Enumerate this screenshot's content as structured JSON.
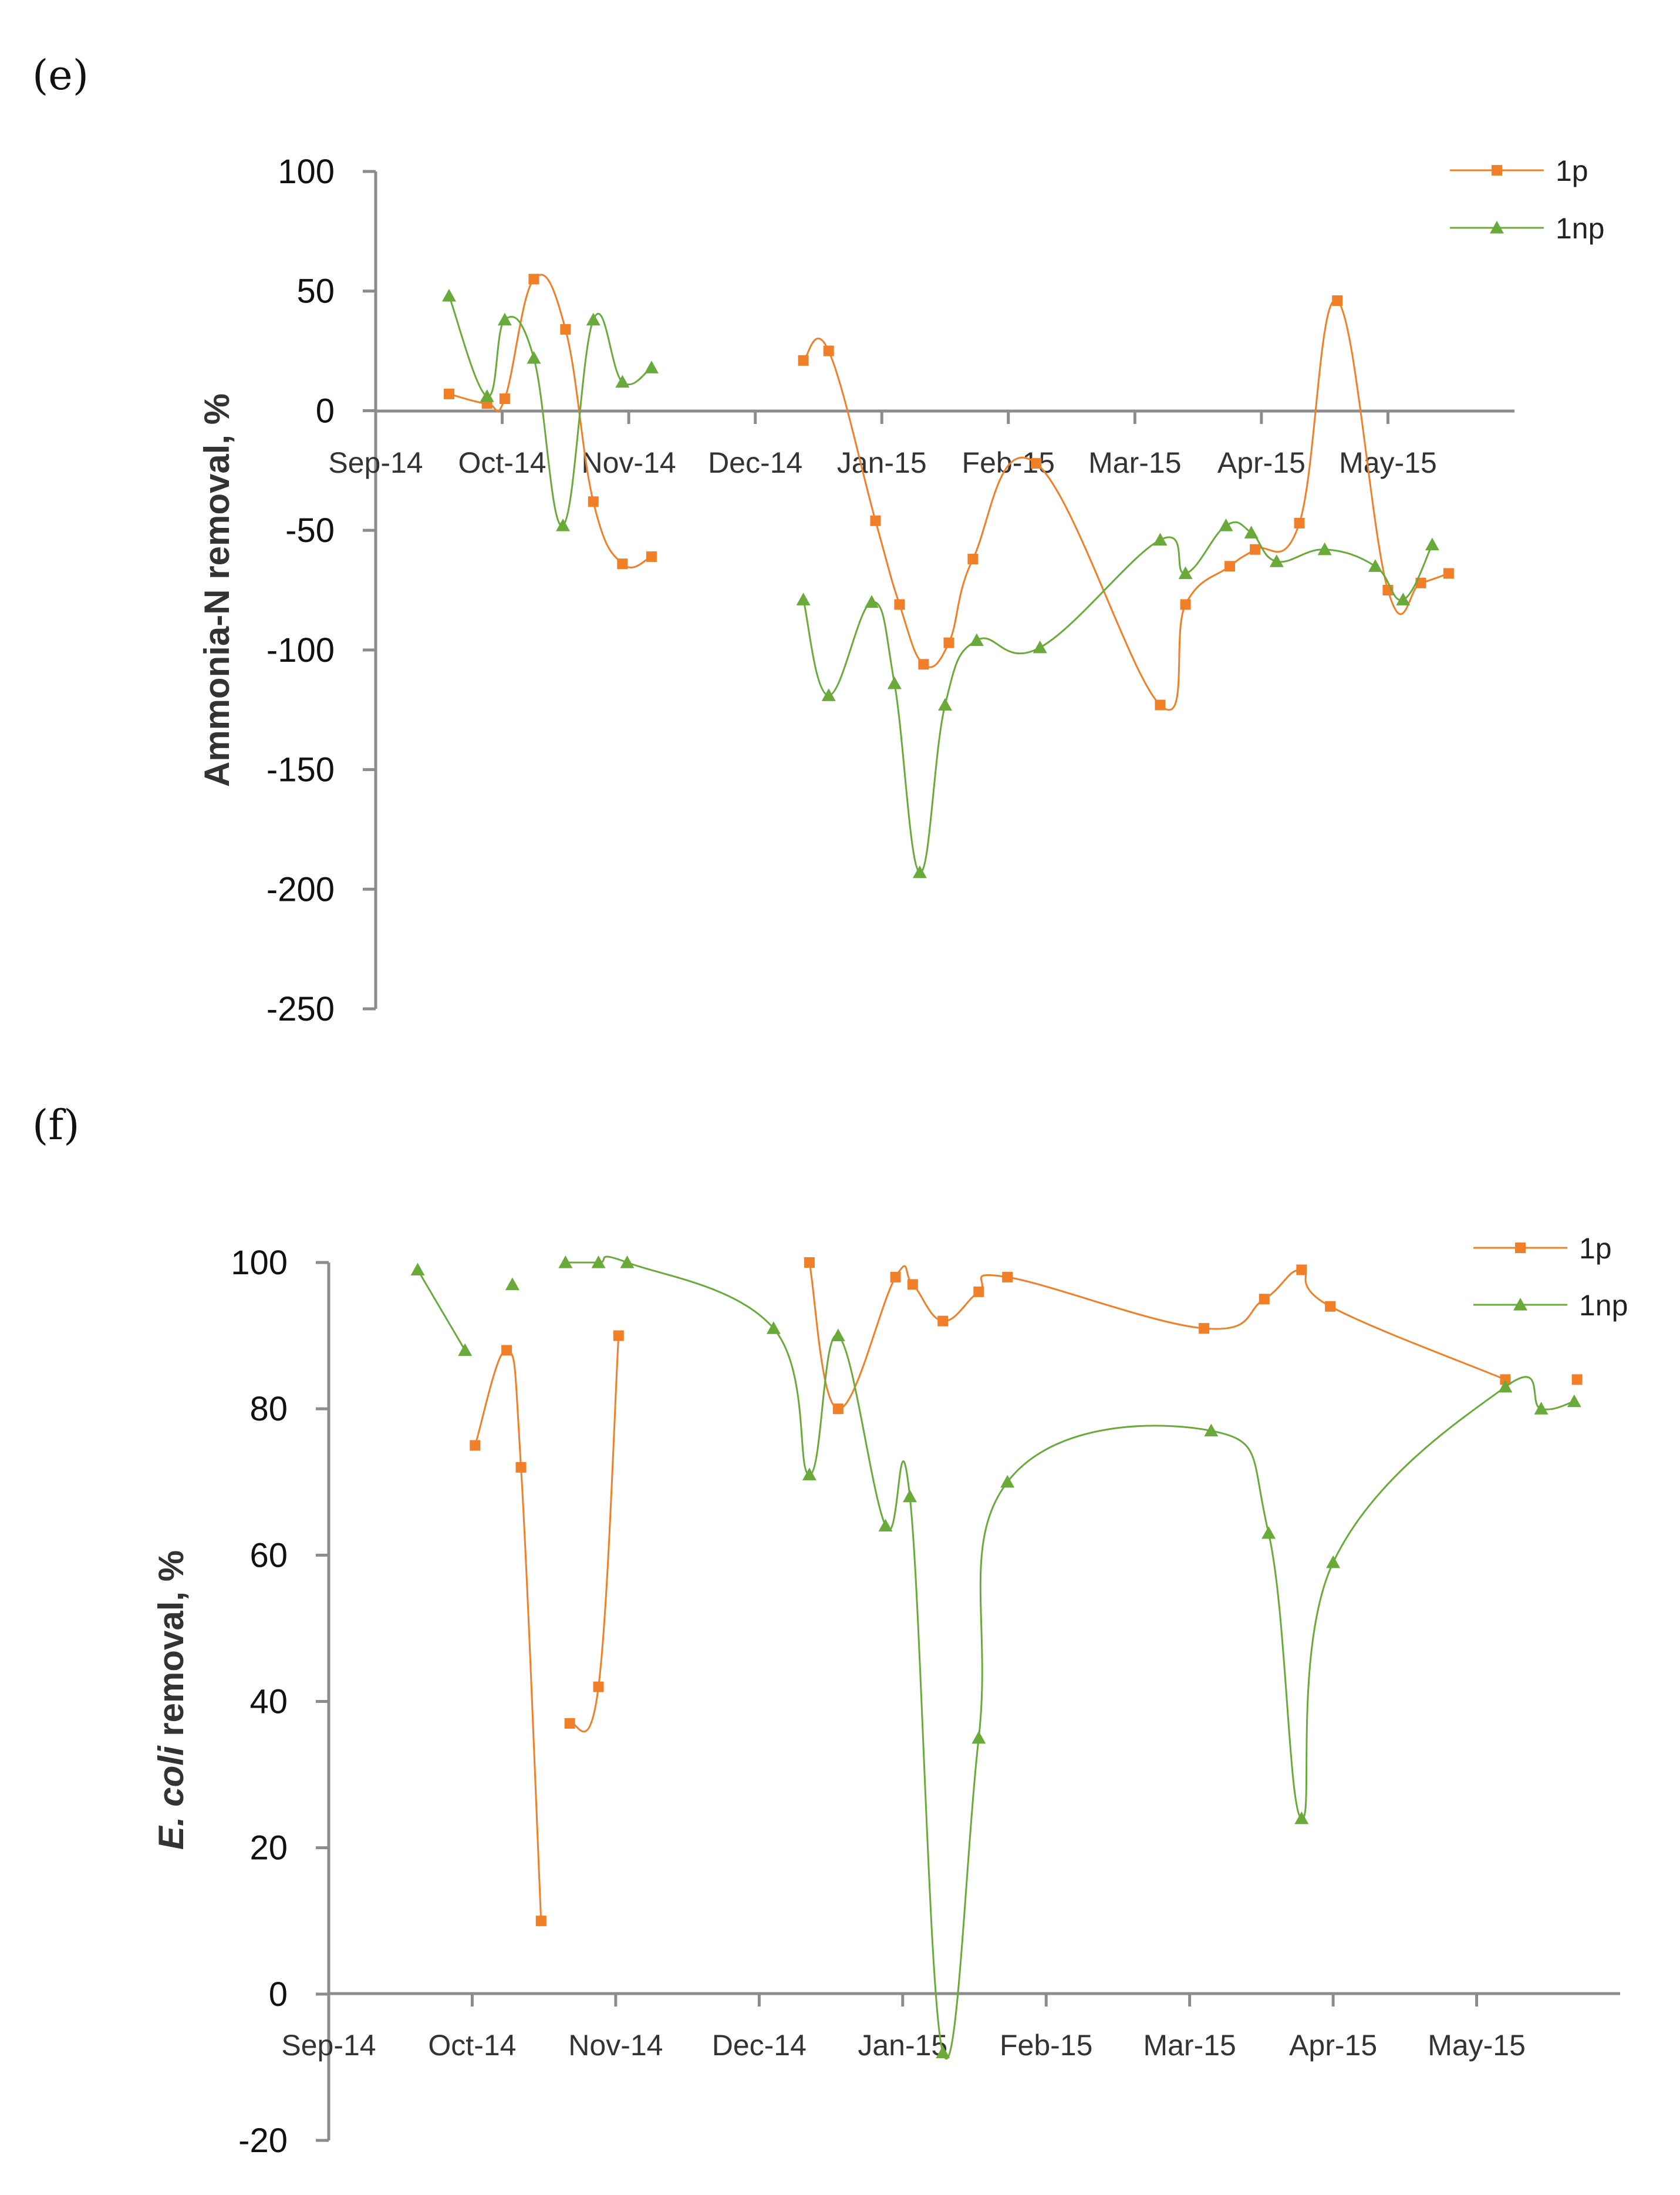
{
  "colors": {
    "p": "#f07f27",
    "np": "#6aaa3a",
    "axis": "#8c8c8c"
  },
  "x_ticks": [
    "Sep-14",
    "Oct-14",
    "Nov-14",
    "Dec-14",
    "Jan-15",
    "Feb-15",
    "Mar-15",
    "Apr-15",
    "May-15"
  ],
  "chart_data": [
    {
      "panel": "(e)",
      "type": "line",
      "xlabel": "",
      "ylabel": "Ammonia-N removal, %",
      "ylim": [
        -250,
        100
      ],
      "yticks": [
        100,
        50,
        0,
        -50,
        -100,
        -150,
        -200,
        -250
      ],
      "x_units": "months since Sep-14",
      "xlim": [
        0,
        9
      ],
      "legend": [
        "1p",
        "1np"
      ],
      "legend_position": "top-right",
      "series": [
        {
          "name": "1p",
          "marker": "square",
          "color": "#f07f27",
          "segments": [
            {
              "x": [
                0.58,
                0.88,
                1.02,
                1.25,
                1.5,
                1.72,
                1.95,
                2.18
              ],
              "y": [
                7,
                3,
                5,
                55,
                34,
                -38,
                -64,
                -61
              ]
            },
            {
              "x": [
                3.38,
                3.58,
                3.95,
                4.14,
                4.33,
                4.53,
                4.72,
                5.22,
                6.2,
                6.4,
                6.75,
                6.95,
                7.3,
                7.6,
                8.0,
                8.26,
                8.48
              ],
              "y": [
                21,
                25,
                -46,
                -81,
                -106,
                -97,
                -62,
                -22,
                -123,
                -81,
                -65,
                -58,
                -47,
                46,
                -75,
                -72,
                -68
              ]
            }
          ]
        },
        {
          "name": "1np",
          "marker": "triangle",
          "color": "#6aaa3a",
          "segments": [
            {
              "x": [
                0.58,
                0.88,
                1.02,
                1.25,
                1.48,
                1.72,
                1.95,
                2.18
              ],
              "y": [
                48,
                6,
                38,
                22,
                -48,
                38,
                12,
                18
              ]
            },
            {
              "x": [
                3.38,
                3.58,
                3.92,
                4.1,
                4.3,
                4.5,
                4.75,
                5.25,
                6.2,
                6.4,
                6.72,
                6.92,
                7.12,
                7.5,
                7.9,
                8.12,
                8.35
              ],
              "y": [
                -79,
                -119,
                -80,
                -114,
                -193,
                -123,
                -96,
                -99,
                -54,
                -68,
                -48,
                -51,
                -63,
                -58,
                -65,
                -79,
                -56
              ]
            }
          ]
        }
      ]
    },
    {
      "panel": "(f)",
      "type": "line",
      "xlabel": "",
      "ylabel": "E. coli removal, %",
      "ylabel_italic": "E. coli",
      "ylabel_rest": " removal, %",
      "ylim": [
        -20,
        100
      ],
      "yticks": [
        100,
        80,
        60,
        40,
        20,
        0,
        -20
      ],
      "x_units": "months since Sep-14",
      "xlim": [
        0,
        9
      ],
      "legend": [
        "1p",
        "1np"
      ],
      "legend_position": "top-right",
      "series": [
        {
          "name": "1p",
          "marker": "square",
          "color": "#f07f27",
          "segments": [
            {
              "x": [
                1.02,
                1.24,
                1.34,
                1.48
              ],
              "y": [
                75,
                88,
                72,
                10
              ]
            },
            {
              "x": [
                1.68,
                1.88,
                2.02
              ],
              "y": [
                37,
                42,
                90
              ]
            },
            {
              "x": [
                3.35,
                3.55,
                3.95,
                4.07,
                4.28,
                4.53,
                4.73,
                6.1,
                6.52,
                6.78,
                6.98,
                8.2
              ],
              "y": [
                100,
                80,
                98,
                97,
                92,
                96,
                98,
                91,
                95,
                99,
                94,
                84
              ]
            },
            {
              "x": [
                8.7
              ],
              "y": [
                84
              ]
            }
          ]
        },
        {
          "name": "1np",
          "marker": "triangle",
          "color": "#6aaa3a",
          "segments": [
            {
              "x": [
                0.62,
                0.95
              ],
              "y": [
                99,
                88
              ]
            },
            {
              "x": [
                1.28
              ],
              "y": [
                97
              ]
            },
            {
              "x": [
                1.65,
                1.88,
                2.08,
                3.1,
                3.35,
                3.55,
                3.88,
                4.05,
                4.28,
                4.53,
                4.73,
                6.15,
                6.55,
                6.78,
                7.0,
                8.2,
                8.45,
                8.68
              ],
              "y": [
                100,
                100,
                100,
                91,
                71,
                90,
                64,
                68,
                -8,
                35,
                70,
                77,
                63,
                24,
                59,
                83,
                80,
                81
              ]
            }
          ]
        }
      ]
    }
  ]
}
